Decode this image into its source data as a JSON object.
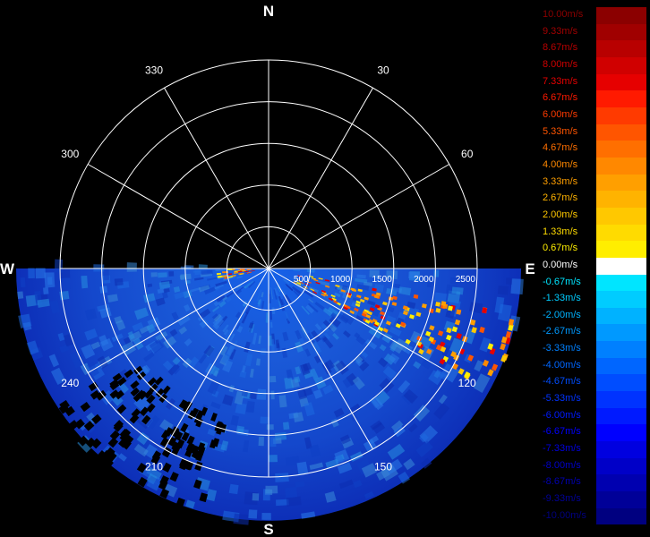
{
  "chart_data": {
    "type": "polar radial velocity field (PPI)",
    "cardinals": [
      "N",
      "E",
      "S",
      "W"
    ],
    "azimuth_labels": [
      "30",
      "60",
      "120",
      "150",
      "210",
      "240",
      "300",
      "330"
    ],
    "range_labels": [
      "500",
      "1000",
      "1500",
      "2000",
      "2500"
    ],
    "range_rings_m": [
      500,
      1000,
      1500,
      2000,
      2500
    ],
    "radial_lines_deg": [
      0,
      30,
      60,
      90,
      120,
      150,
      180,
      210,
      240,
      270,
      300,
      330
    ],
    "scan_sector_deg": [
      90,
      270
    ],
    "max_range_m": 2500,
    "velocity_unit": "m/s",
    "field_summary": {
      "dominant_velocity_ms": -4.67,
      "positive_band": {
        "azimuth_deg": [
          100,
          118
        ],
        "velocity_ms": [
          2.0,
          7.33
        ]
      },
      "positive_near_west": {
        "azimuth_deg": [
          255,
          268
        ],
        "velocity_ms": [
          1.33,
          4.0
        ]
      },
      "no_data_gaps_azimuth_deg": [
        [
          218,
          236
        ],
        [
          195,
          212
        ]
      ]
    },
    "colorbar": [
      {
        "label": "10.00m/s",
        "color": "#8b0000"
      },
      {
        "label": "9.33m/s",
        "color": "#a00000"
      },
      {
        "label": "8.67m/s",
        "color": "#b80000"
      },
      {
        "label": "8.00m/s",
        "color": "#d00000"
      },
      {
        "label": "7.33m/s",
        "color": "#e60000"
      },
      {
        "label": "6.67m/s",
        "color": "#ff1a00"
      },
      {
        "label": "6.00m/s",
        "color": "#ff3a00"
      },
      {
        "label": "5.33m/s",
        "color": "#ff5500"
      },
      {
        "label": "4.67m/s",
        "color": "#ff6f00"
      },
      {
        "label": "4.00m/s",
        "color": "#ff8800"
      },
      {
        "label": "3.33m/s",
        "color": "#ff9f00"
      },
      {
        "label": "2.67m/s",
        "color": "#ffb300"
      },
      {
        "label": "2.00m/s",
        "color": "#ffc800"
      },
      {
        "label": "1.33m/s",
        "color": "#ffdb00"
      },
      {
        "label": "0.67m/s",
        "color": "#ffee00"
      },
      {
        "label": "0.00m/s",
        "color": "#ffffff"
      },
      {
        "label": "-0.67m/s",
        "color": "#00e5ff"
      },
      {
        "label": "-1.33m/s",
        "color": "#00ccff"
      },
      {
        "label": "-2.00m/s",
        "color": "#00b2ff"
      },
      {
        "label": "-2.67m/s",
        "color": "#0099ff"
      },
      {
        "label": "-3.33m/s",
        "color": "#0080ff"
      },
      {
        "label": "-4.00m/s",
        "color": "#0066ff"
      },
      {
        "label": "-4.67m/s",
        "color": "#004dff"
      },
      {
        "label": "-5.33m/s",
        "color": "#0033ff"
      },
      {
        "label": "-6.00m/s",
        "color": "#001aff"
      },
      {
        "label": "-6.67m/s",
        "color": "#0000ff"
      },
      {
        "label": "-7.33m/s",
        "color": "#0000e0"
      },
      {
        "label": "-8.00m/s",
        "color": "#0000c8"
      },
      {
        "label": "-8.67m/s",
        "color": "#0000b0"
      },
      {
        "label": "-9.33m/s",
        "color": "#000098"
      },
      {
        "label": "-10.00m/s",
        "color": "#000080"
      }
    ]
  }
}
